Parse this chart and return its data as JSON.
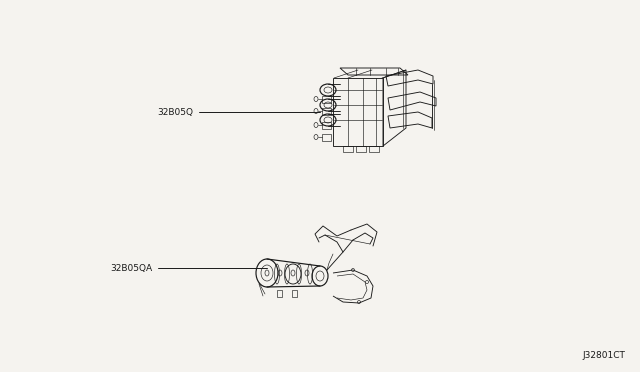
{
  "background_color": "#f5f3ef",
  "label1": "32B05Q",
  "label2": "32B05QA",
  "diagram_id": "J32801CT",
  "fig_width": 6.4,
  "fig_height": 3.72,
  "dpi": 100,
  "line_color": "#1a1a1a",
  "label_fontsize": 6.5,
  "diagram_id_fontsize": 6.5
}
